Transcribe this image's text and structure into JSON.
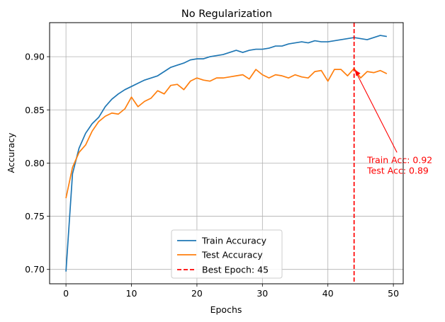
{
  "chart_data": {
    "type": "line",
    "title": "No Regularization",
    "xlabel": "Epochs",
    "ylabel": "Accuracy",
    "xlim": [
      -2.5,
      51.5
    ],
    "ylim": [
      0.6865,
      0.932
    ],
    "xticks": [
      0,
      10,
      20,
      30,
      40,
      50
    ],
    "xtick_labels": [
      "0",
      "10",
      "20",
      "30",
      "40",
      "50"
    ],
    "yticks": [
      0.7,
      0.75,
      0.8,
      0.85,
      0.9
    ],
    "ytick_labels": [
      "0.70",
      "0.75",
      "0.80",
      "0.85",
      "0.90"
    ],
    "grid": true,
    "legend_position": "bottom-center",
    "x": [
      0,
      1,
      2,
      3,
      4,
      5,
      6,
      7,
      8,
      9,
      10,
      11,
      12,
      13,
      14,
      15,
      16,
      17,
      18,
      19,
      20,
      21,
      22,
      23,
      24,
      25,
      26,
      27,
      28,
      29,
      30,
      31,
      32,
      33,
      34,
      35,
      36,
      37,
      38,
      39,
      40,
      41,
      42,
      43,
      44,
      45,
      46,
      47,
      48,
      49
    ],
    "series": [
      {
        "name": "Train Accuracy",
        "color": "#1f77b4",
        "values": [
          0.698,
          0.79,
          0.814,
          0.828,
          0.837,
          0.843,
          0.853,
          0.86,
          0.865,
          0.869,
          0.872,
          0.875,
          0.878,
          0.88,
          0.882,
          0.886,
          0.89,
          0.892,
          0.894,
          0.897,
          0.898,
          0.898,
          0.9,
          0.901,
          0.902,
          0.904,
          0.906,
          0.904,
          0.906,
          0.907,
          0.907,
          0.908,
          0.91,
          0.91,
          0.912,
          0.913,
          0.914,
          0.913,
          0.915,
          0.914,
          0.914,
          0.915,
          0.916,
          0.917,
          0.918,
          0.917,
          0.916,
          0.918,
          0.92,
          0.919
        ]
      },
      {
        "name": "Test Accuracy",
        "color": "#ff7f0e",
        "values": [
          0.767,
          0.796,
          0.81,
          0.817,
          0.83,
          0.839,
          0.844,
          0.847,
          0.846,
          0.851,
          0.862,
          0.853,
          0.858,
          0.861,
          0.868,
          0.865,
          0.873,
          0.874,
          0.869,
          0.877,
          0.88,
          0.878,
          0.877,
          0.88,
          0.88,
          0.881,
          0.882,
          0.883,
          0.879,
          0.888,
          0.883,
          0.88,
          0.883,
          0.882,
          0.88,
          0.883,
          0.881,
          0.88,
          0.886,
          0.887,
          0.877,
          0.888,
          0.888,
          0.882,
          0.889,
          0.88,
          0.886,
          0.885,
          0.887,
          0.884
        ]
      }
    ],
    "best_epoch": {
      "label": "Best Epoch: 45",
      "x": 44,
      "color": "#ff0000"
    },
    "annotation": {
      "lines": [
        "Train Acc: 0.92",
        "Test Acc: 0.89"
      ],
      "color": "#ff0000",
      "point_x": 44,
      "point_y": 0.889,
      "text_x": 46,
      "text_y": 0.8
    }
  }
}
